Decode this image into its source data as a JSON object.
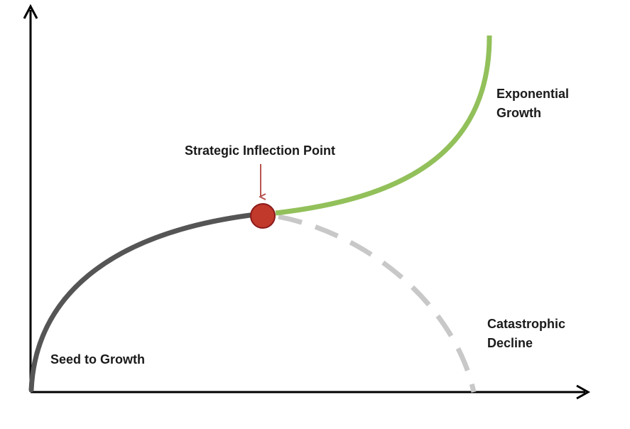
{
  "labels": {
    "inflection_point": "Strategic Inflection Point",
    "exponential_line1": "Exponential",
    "exponential_line2": "Growth",
    "decline_line1": "Catastrophic",
    "decline_line2": "Decline",
    "seed": "Seed to Growth"
  },
  "colors": {
    "axis": "#000000",
    "seed_curve": "#555555",
    "growth_curve": "#92c05a",
    "decline_curve": "#c8c8c8",
    "point_fill": "#c0392b",
    "point_stroke": "#8b1a1a",
    "arrow": "#b85450"
  }
}
